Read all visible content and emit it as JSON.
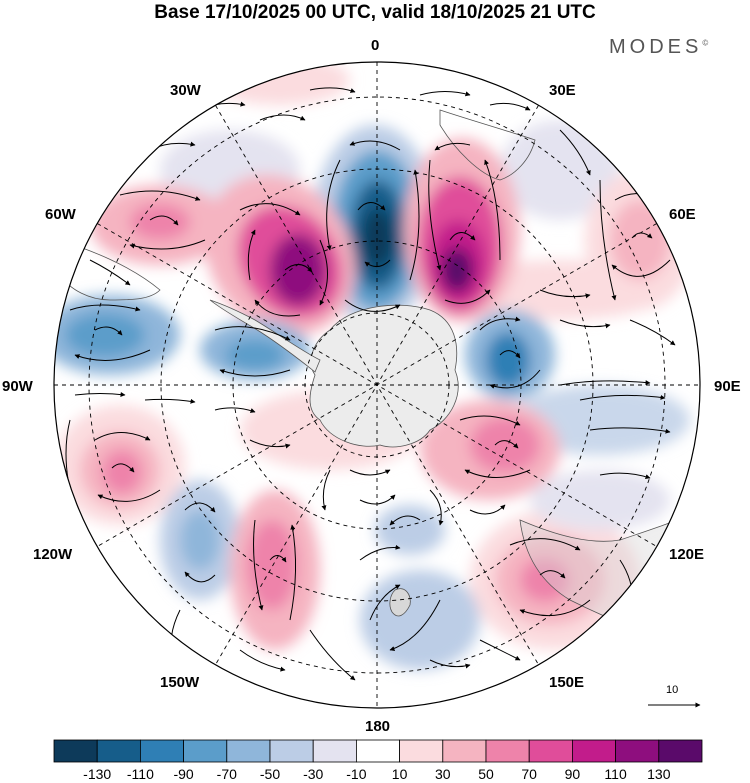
{
  "title": "Base 17/10/2025 00 UTC, valid 18/10/2025 21 UTC",
  "brand": "MODES",
  "brand_mark": "©",
  "longitude_labels": {
    "lon_0": "0",
    "lon_30e": "30E",
    "lon_60e": "60E",
    "lon_90e": "90E",
    "lon_120e": "120E",
    "lon_150e": "150E",
    "lon_180": "180",
    "lon_150w": "150W",
    "lon_120w": "120W",
    "lon_90w": "90W",
    "lon_60w": "60W",
    "lon_30w": "30W"
  },
  "reference_vector": {
    "label": "10",
    "value": 10
  },
  "colorbar": {
    "labels": [
      "-130",
      "-110",
      "-90",
      "-70",
      "-50",
      "-30",
      "-10",
      "10",
      "30",
      "50",
      "70",
      "90",
      "110",
      "130"
    ],
    "colors": [
      "#0d3a5a",
      "#165d8a",
      "#2f7fb5",
      "#5b9dca",
      "#8fb6da",
      "#bccde6",
      "#e4e3f0",
      "#ffffff",
      "#fbdcdf",
      "#f5b4c1",
      "#ee83aa",
      "#e04d9a",
      "#c21c8b",
      "#8e0e7e",
      "#5a0a6a"
    ]
  },
  "anomaly_centers": [
    {
      "name": "neg-0E",
      "sign": "negative",
      "magnitude": 130
    },
    {
      "name": "pos-25E",
      "sign": "positive",
      "magnitude": 130
    },
    {
      "name": "pos-45W",
      "sign": "positive",
      "magnitude": 110
    },
    {
      "name": "pos-65W",
      "sign": "positive",
      "magnitude": 60
    },
    {
      "name": "neg-80W",
      "sign": "negative",
      "magnitude": 80
    },
    {
      "name": "neg-65W-inner",
      "sign": "negative",
      "magnitude": 70
    },
    {
      "name": "pos-65E",
      "sign": "positive",
      "magnitude": 60
    },
    {
      "name": "neg-85E",
      "sign": "negative",
      "magnitude": 90
    },
    {
      "name": "neg-95E",
      "sign": "negative",
      "magnitude": 40
    },
    {
      "name": "pos-110E",
      "sign": "positive",
      "magnitude": 70
    },
    {
      "name": "pos-140E",
      "sign": "positive",
      "magnitude": 70
    },
    {
      "name": "neg-175E",
      "sign": "negative",
      "magnitude": 50
    },
    {
      "name": "pos-115W",
      "sign": "positive",
      "magnitude": 70
    },
    {
      "name": "neg-140W",
      "sign": "negative",
      "magnitude": 50
    },
    {
      "name": "pos-145W",
      "sign": "positive",
      "magnitude": 70
    }
  ]
}
